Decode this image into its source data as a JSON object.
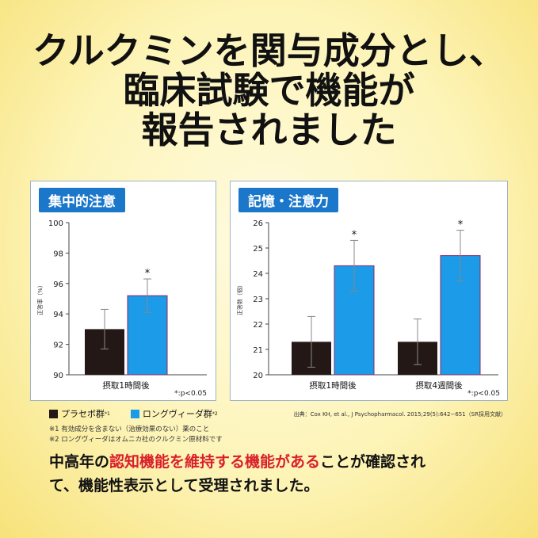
{
  "headline": {
    "line1": "クルクミンを関与成分とし、",
    "line2": "臨床試験で機能が",
    "line3": "報告されました"
  },
  "panels": [
    {
      "title": "集中的注意",
      "ylabel": "正答率（%）",
      "footnote": "*:p<0.05"
    },
    {
      "title": "記憶・注意力",
      "ylabel": "正答数（個）",
      "footnote": "*:p<0.05"
    }
  ],
  "legend": {
    "placebo": "プラセボ群",
    "placebo_mark": "*1",
    "longvida": "ロングヴィーダ群",
    "longvida_mark": "*2"
  },
  "notes": {
    "n1": "※1 有効成分を含まない（治療効果のない）薬のこと",
    "n2": "※2 ロングヴィーダはオムニカ社のクルクミン原材料です"
  },
  "source": "出典：Cox KH, et al., J Psychopharmacol. 2015;29(5):642−651（SR採用文献）",
  "bottom": {
    "part1": "中高年の",
    "part2": "認知機能を維持する機能がある",
    "part3": "ことが確認され",
    "line2": "て、機能性表示として受理されました。"
  },
  "colors": {
    "placebo": "#231815",
    "longvida": "#1b9be8",
    "title_bg": "#1b77c9",
    "highlight": "#d9202a"
  },
  "chart_data": [
    {
      "type": "bar",
      "title": "集中的注意",
      "ylabel": "正答率（%）",
      "ylim": [
        90,
        100
      ],
      "yticks": [
        "90",
        "92",
        "94",
        "96",
        "98",
        "100"
      ],
      "categories": [
        "摂取1時間後"
      ],
      "series": [
        {
          "name": "プラセボ群",
          "values": [
            93.0
          ],
          "err": [
            1.3
          ]
        },
        {
          "name": "ロングヴィーダ群",
          "values": [
            95.2
          ],
          "err": [
            1.1
          ]
        }
      ],
      "significance": [
        {
          "category": 0,
          "series": 1,
          "mark": "*"
        }
      ],
      "grid": false
    },
    {
      "type": "bar",
      "title": "記憶・注意力",
      "ylabel": "正答数（個）",
      "ylim": [
        20,
        26
      ],
      "yticks": [
        "20",
        "21",
        "22",
        "23",
        "24",
        "25",
        "26"
      ],
      "categories": [
        "摂取1時間後",
        "摂取4週間後"
      ],
      "series": [
        {
          "name": "プラセボ群",
          "values": [
            21.3,
            21.3
          ],
          "err": [
            1.0,
            0.9
          ]
        },
        {
          "name": "ロングヴィーダ群",
          "values": [
            24.3,
            24.7
          ],
          "err": [
            1.0,
            1.0
          ]
        }
      ],
      "significance": [
        {
          "category": 0,
          "series": 1,
          "mark": "*"
        },
        {
          "category": 1,
          "series": 1,
          "mark": "*"
        }
      ],
      "grid": false
    }
  ]
}
